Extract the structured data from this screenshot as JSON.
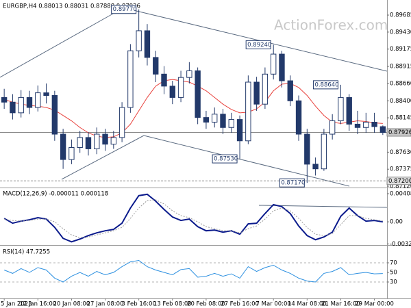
{
  "chart_data": [
    {
      "type": "candlestick",
      "title": "EURGBP,H4 0.88013 0.88031 0.87888 0.87926",
      "watermark": "ActionForex.com",
      "color": "#22396a",
      "open": [
        0.8845,
        0.8838,
        0.8822,
        0.8845,
        0.883,
        0.8852,
        0.8848,
        0.879,
        0.8752,
        0.877,
        0.8785,
        0.8768,
        0.879,
        0.8775,
        0.8785,
        0.883,
        0.8915,
        0.8945,
        0.8905,
        0.888,
        0.8862,
        0.8845,
        0.8875,
        0.8885,
        0.8815,
        0.8808,
        0.882,
        0.88,
        0.8812,
        0.878,
        0.8868,
        0.8835,
        0.888,
        0.891,
        0.887,
        0.884,
        0.879,
        0.8745,
        0.8738,
        0.879,
        0.881,
        0.8845,
        0.8805,
        0.88,
        0.8808,
        0.88013
      ],
      "high": [
        0.8858,
        0.885,
        0.8856,
        0.8855,
        0.8863,
        0.8866,
        0.8855,
        0.8798,
        0.8782,
        0.8795,
        0.8793,
        0.88,
        0.8798,
        0.8795,
        0.8838,
        0.8925,
        0.8977,
        0.8955,
        0.8915,
        0.8892,
        0.887,
        0.8885,
        0.8898,
        0.889,
        0.8825,
        0.883,
        0.8828,
        0.8822,
        0.8818,
        0.8878,
        0.8876,
        0.889,
        0.8924,
        0.8915,
        0.8878,
        0.8848,
        0.8798,
        0.8755,
        0.8798,
        0.882,
        0.8864,
        0.885,
        0.8825,
        0.8822,
        0.8822,
        0.88031
      ],
      "low": [
        0.8828,
        0.8812,
        0.8815,
        0.882,
        0.8824,
        0.8836,
        0.878,
        0.8738,
        0.8745,
        0.8762,
        0.8758,
        0.876,
        0.8765,
        0.8768,
        0.8778,
        0.8822,
        0.8905,
        0.8893,
        0.8868,
        0.885,
        0.8835,
        0.8838,
        0.8866,
        0.8805,
        0.8798,
        0.88,
        0.879,
        0.8792,
        0.8753,
        0.8775,
        0.8825,
        0.8828,
        0.8872,
        0.886,
        0.8832,
        0.878,
        0.8717,
        0.8728,
        0.8735,
        0.8782,
        0.8805,
        0.8795,
        0.879,
        0.8792,
        0.8792,
        0.87888
      ],
      "close": [
        0.8838,
        0.8822,
        0.8845,
        0.883,
        0.8852,
        0.8848,
        0.879,
        0.8752,
        0.877,
        0.8785,
        0.8768,
        0.879,
        0.8775,
        0.8785,
        0.883,
        0.8915,
        0.8945,
        0.8905,
        0.888,
        0.8862,
        0.8845,
        0.8875,
        0.8885,
        0.8815,
        0.8808,
        0.882,
        0.88,
        0.8812,
        0.878,
        0.8868,
        0.8835,
        0.888,
        0.891,
        0.887,
        0.884,
        0.879,
        0.8745,
        0.8738,
        0.879,
        0.881,
        0.8845,
        0.8805,
        0.88,
        0.8808,
        0.88013,
        0.87926
      ],
      "series": [
        {
          "color": "#e8413c",
          "values": [
            0.8842,
            0.8838,
            0.8835,
            0.8833,
            0.8832,
            0.883,
            0.8826,
            0.8818,
            0.881,
            0.88,
            0.8792,
            0.8787,
            0.8785,
            0.8786,
            0.8792,
            0.8805,
            0.8825,
            0.8845,
            0.8862,
            0.887,
            0.8872,
            0.887,
            0.8868,
            0.8862,
            0.8855,
            0.8845,
            0.8835,
            0.8827,
            0.8822,
            0.8823,
            0.8828,
            0.8838,
            0.8855,
            0.8865,
            0.8866,
            0.886,
            0.8848,
            0.8832,
            0.8818,
            0.8808,
            0.8806,
            0.8808,
            0.881,
            0.8809,
            0.8807,
            0.8806
          ]
        }
      ],
      "ylim": [
        0.871,
        0.8987
      ],
      "yticks": [
        0.89685,
        {
          "value": 0.8943,
          "label": "0.89430"
        },
        0.89175,
        0.88915,
        {
          "value": 0.8866,
          "label": "0.88660"
        },
        {
          "value": 0.884,
          "label": "0.88400"
        },
        0.88145,
        {
          "value": 0.8789,
          "label": "0.87890"
        },
        {
          "value": 0.8763,
          "label": "0.87630"
        },
        0.87375,
        {
          "value": 0.8712,
          "label": "0.87120"
        }
      ],
      "annotations": [
        {
          "value": 0.8977,
          "label": "0.89770"
        },
        {
          "value": 0.8924,
          "label": "0.89240"
        },
        {
          "value": 0.8864,
          "label": "0.88640"
        },
        {
          "value": 0.8753,
          "label": "0.87530"
        },
        {
          "value": 0.8717,
          "label": "0.87170"
        }
      ],
      "markers": [
        {
          "value": 0.87926,
          "label": "0.87926"
        },
        {
          "value": 0.872,
          "label": "0.87200"
        }
      ]
    },
    {
      "type": "line",
      "title": "MACD(12,26,9) -0.000011 0.000118",
      "series": [
        {
          "color": "#0a1a8c",
          "style": "solid",
          "values": [
            0.0005,
            -0.0002,
            0.0001,
            0.0003,
            0.0006,
            0.0004,
            -0.0008,
            -0.0024,
            -0.0029,
            -0.0025,
            -0.002,
            -0.0016,
            -0.0013,
            -0.0011,
            -0.0002,
            0.002,
            0.0038,
            0.004,
            0.003,
            0.0018,
            0.0007,
            0.0002,
            0.0004,
            -0.0007,
            -0.0013,
            -0.0012,
            -0.0015,
            -0.0013,
            -0.0018,
            -0.0003,
            -0.0002,
            0.0012,
            0.0025,
            0.0022,
            0.0012,
            -0.0006,
            -0.002,
            -0.0026,
            -0.0022,
            -0.0015,
            0.0008,
            0.002,
            0.0009,
            0.0001,
            0.0002,
            -1.1e-05
          ]
        },
        {
          "color": "#9a9a9a",
          "style": "dotted",
          "values": [
            0.0004,
            0.0002,
            0.0001,
            0.0002,
            0.0004,
            0.0004,
            0.0,
            -0.001,
            -0.0019,
            -0.0023,
            -0.0022,
            -0.0019,
            -0.0016,
            -0.0013,
            -0.0008,
            0.0005,
            0.002,
            0.0031,
            0.0032,
            0.0026,
            0.0016,
            0.0009,
            0.0006,
            0.0,
            -0.0007,
            -0.001,
            -0.0013,
            -0.0013,
            -0.0016,
            -0.001,
            -0.0006,
            0.0004,
            0.0016,
            0.002,
            0.0016,
            0.0005,
            -0.0008,
            -0.0018,
            -0.002,
            -0.0017,
            -0.0004,
            0.0009,
            0.0009,
            0.0005,
            0.0003,
            0.000118
          ]
        }
      ],
      "ylim": [
        -0.00337,
        0.00468
      ],
      "yticks": [
        0.004083,
        {
          "value": 0,
          "label": "0.00"
        },
        -0.003209
      ]
    },
    {
      "type": "line",
      "title": "RSI(14) 47.7255",
      "categories": [
        "5 Jan 2023",
        null,
        null,
        null,
        "12 Jan 16:00",
        null,
        null,
        null,
        "20 Jan 08:00",
        null,
        null,
        null,
        "27 Jan 08:00",
        null,
        null,
        null,
        "3 Feb 16:00",
        null,
        null,
        null,
        "13 Feb 08:00",
        null,
        null,
        null,
        "20 Feb 08:00",
        null,
        null,
        null,
        "27 Feb 16:00",
        null,
        null,
        null,
        "7 Mar 00:00",
        null,
        null,
        null,
        "14 Mar 08:00",
        null,
        null,
        null,
        "21 Mar 16:00",
        null,
        null,
        null,
        "29 Mar 00:00",
        null
      ],
      "series": [
        {
          "color": "#2b8fe0",
          "style": "solid",
          "values": [
            55,
            48,
            58,
            50,
            60,
            55,
            38,
            30,
            42,
            50,
            42,
            52,
            45,
            50,
            62,
            72,
            75,
            62,
            55,
            50,
            45,
            56,
            58,
            40,
            42,
            48,
            42,
            47,
            38,
            62,
            52,
            60,
            65,
            55,
            48,
            38,
            32,
            30,
            48,
            52,
            60,
            45,
            48,
            50,
            47,
            47.7255
          ]
        }
      ],
      "ylim": [
        0,
        100
      ],
      "yticks": [
        30,
        50,
        70
      ],
      "levels": [
        30,
        70
      ]
    }
  ]
}
